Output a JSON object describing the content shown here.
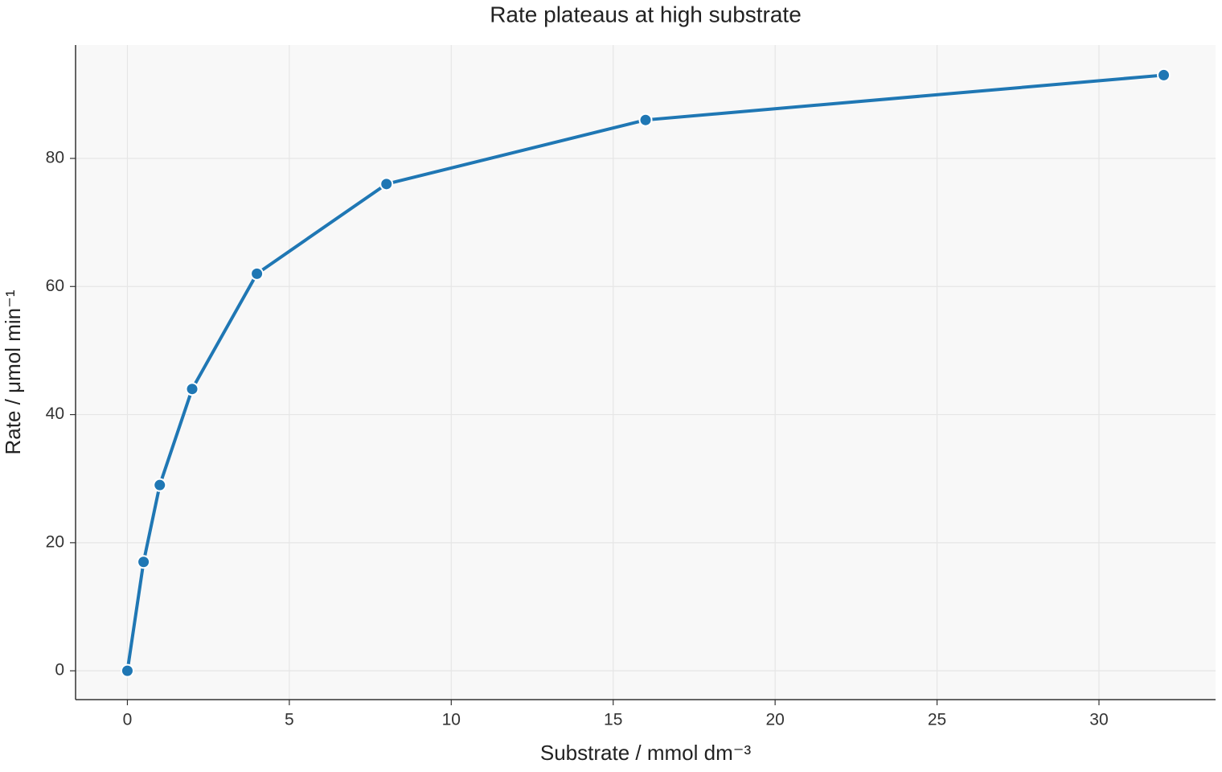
{
  "chart_data": {
    "type": "line",
    "title": "Rate plateaus at high substrate",
    "x_label": "Substrate / mmol dm⁻³",
    "y_label": "Rate / μmol min⁻¹",
    "x": [
      0,
      0.5,
      1,
      2,
      4,
      8,
      16,
      32
    ],
    "values": [
      0,
      17,
      29,
      44,
      62,
      76,
      86,
      93
    ],
    "color": "#1f77b4",
    "xlim": [
      -1.6,
      33.6
    ],
    "xticks": [
      0,
      5,
      10,
      15,
      20,
      25,
      30
    ],
    "ylim": [
      -4.5,
      97.7
    ],
    "yticks": [
      0,
      20,
      40,
      60,
      80
    ],
    "grid": true
  }
}
